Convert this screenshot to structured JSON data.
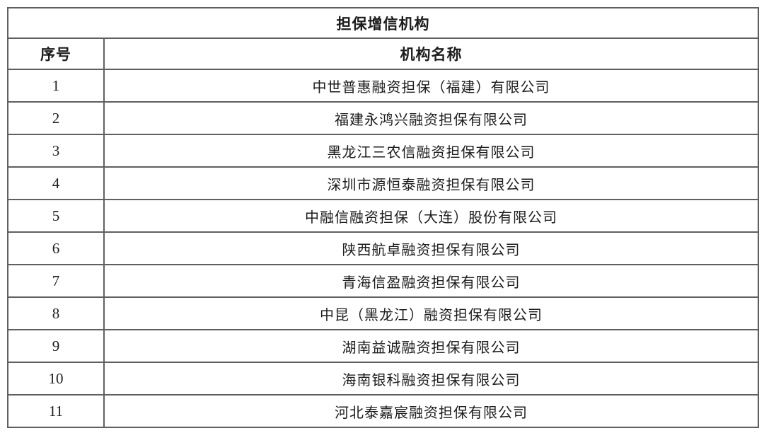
{
  "table": {
    "title": "担保增信机构",
    "columns": {
      "index": "序号",
      "name": "机构名称"
    },
    "rows": [
      {
        "index": "1",
        "name": "中世普惠融资担保（福建）有限公司"
      },
      {
        "index": "2",
        "name": "福建永鸿兴融资担保有限公司"
      },
      {
        "index": "3",
        "name": "黑龙江三农信融资担保有限公司"
      },
      {
        "index": "4",
        "name": "深圳市源恒泰融资担保有限公司"
      },
      {
        "index": "5",
        "name": "中融信融资担保（大连）股份有限公司"
      },
      {
        "index": "6",
        "name": "陕西航卓融资担保有限公司"
      },
      {
        "index": "7",
        "name": "青海信盈融资担保有限公司"
      },
      {
        "index": "8",
        "name": "中昆（黑龙江）融资担保有限公司"
      },
      {
        "index": "9",
        "name": "湖南益诚融资担保有限公司"
      },
      {
        "index": "10",
        "name": "海南银科融资担保有限公司"
      },
      {
        "index": "11",
        "name": "河北泰嘉宸融资担保有限公司"
      }
    ],
    "colors": {
      "border": "#5f5f5f",
      "text": "#1c1c1c",
      "background": "#ffffff"
    }
  }
}
